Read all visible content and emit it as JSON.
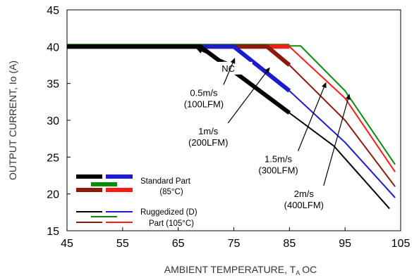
{
  "chart_data": {
    "type": "line",
    "title": "",
    "xlabel": "AMBIENT TEMPERATURE, T",
    "xlabel_sub": "A",
    "xlabel_unit": "OC",
    "ylabel": "OUTPUT CURRENT, Io  (A)",
    "xlim": [
      45,
      105
    ],
    "ylim": [
      15,
      45
    ],
    "xticks": [
      45,
      55,
      65,
      75,
      85,
      95,
      105
    ],
    "yticks": [
      15,
      20,
      25,
      30,
      35,
      40,
      45
    ],
    "grid": false,
    "colors": {
      "nc": "#000000",
      "ms05": "#1c1ccc",
      "ms1": "#8b1a0c",
      "ms15": "#ff1a1a",
      "ms2": "#0a8a0a"
    },
    "series": [
      {
        "key": "nc",
        "standard": [
          [
            45,
            40
          ],
          [
            69,
            40
          ],
          [
            85,
            31
          ]
        ],
        "ruggedized": [
          [
            45,
            40
          ],
          [
            69,
            40
          ],
          [
            85,
            31
          ],
          [
            93,
            26.5
          ],
          [
            103,
            18
          ]
        ]
      },
      {
        "key": "ms05",
        "standard": [
          [
            45,
            40
          ],
          [
            75,
            40
          ],
          [
            85,
            34
          ]
        ],
        "ruggedized": [
          [
            45,
            40
          ],
          [
            75,
            40
          ],
          [
            85,
            34
          ],
          [
            95,
            27
          ],
          [
            104,
            19.5
          ]
        ]
      },
      {
        "key": "ms1",
        "standard": [
          [
            45,
            40
          ],
          [
            81,
            40
          ],
          [
            85,
            37.5
          ]
        ],
        "ruggedized": [
          [
            45,
            40
          ],
          [
            81,
            40
          ],
          [
            85,
            37.5
          ],
          [
            95,
            30
          ],
          [
            104,
            21
          ]
        ]
      },
      {
        "key": "ms15",
        "standard": [
          [
            45,
            40
          ],
          [
            85,
            40
          ]
        ],
        "ruggedized": [
          [
            45,
            40
          ],
          [
            85,
            40
          ],
          [
            95,
            33
          ],
          [
            104,
            23
          ]
        ]
      },
      {
        "key": "ms2",
        "standard": [
          [
            45,
            40.1
          ],
          [
            85,
            40.1
          ]
        ],
        "ruggedized": [
          [
            45,
            40.1
          ],
          [
            87,
            40.1
          ],
          [
            95,
            34
          ],
          [
            104,
            24
          ]
        ]
      }
    ],
    "annotations": [
      {
        "lines": [
          "NC"
        ],
        "x_text": 74.0,
        "y_text": 36.6,
        "x_arrow": 68.3,
        "y_arrow": 39.7
      },
      {
        "lines": [
          "0.5m/s",
          "(100LFM)"
        ],
        "x_text": 69.6,
        "y_text": 33.3,
        "x_arrow": 75.2,
        "y_arrow": 38.5
      },
      {
        "lines": [
          "1m/s",
          "(200LFM)"
        ],
        "x_text": 70.4,
        "y_text": 28.1,
        "x_arrow": 81.5,
        "y_arrow": 37.2
      },
      {
        "lines": [
          "1.5m/s",
          "(300LFM)"
        ],
        "x_text": 83.0,
        "y_text": 24.3,
        "x_arrow": 91.6,
        "y_arrow": 35.2
      },
      {
        "lines": [
          "2m/s",
          "(400LFM)"
        ],
        "x_text": 87.6,
        "y_text": 19.6,
        "x_arrow": 95.8,
        "y_arrow": 33.6
      }
    ],
    "legend": {
      "standard": [
        "Standard Part",
        "(85°C)"
      ],
      "ruggedized": [
        "Ruggedized (D)",
        "Part (105°C)"
      ]
    }
  }
}
